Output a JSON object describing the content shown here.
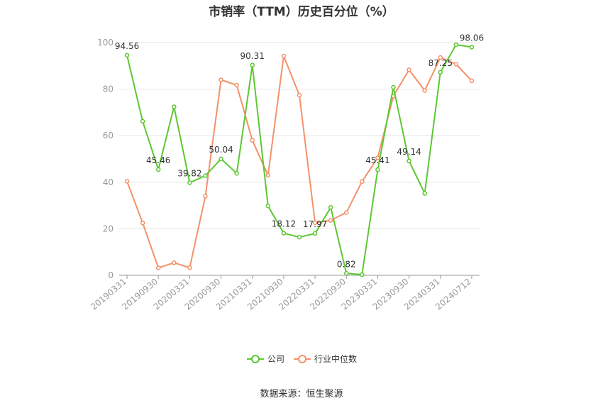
{
  "chart_data": {
    "type": "line",
    "title": "市销率（TTM）历史百分位（%）",
    "xlabel": "",
    "ylabel": "",
    "ylim": [
      0,
      100
    ],
    "yticks": [
      0,
      20,
      40,
      60,
      80,
      100
    ],
    "grid": true,
    "legend_position": "bottom-center",
    "x": [
      "20190331",
      "20190630",
      "20190930",
      "20191231",
      "20200331",
      "20200630",
      "20200930",
      "20201231",
      "20210331",
      "20210630",
      "20210930",
      "20211231",
      "20220331",
      "20220630",
      "20220930",
      "20221231",
      "20230331",
      "20230630",
      "20230930",
      "20231231",
      "20240331",
      "20240630",
      "20240712"
    ],
    "x_tick_labels": [
      "20190331",
      "20190930",
      "20200331",
      "20200930",
      "20210331",
      "20210930",
      "20220331",
      "20220930",
      "20230331",
      "20230930",
      "20240331",
      "20240712"
    ],
    "x_tick_indices": [
      0,
      2,
      4,
      6,
      8,
      10,
      12,
      14,
      16,
      18,
      20,
      22
    ],
    "series": [
      {
        "name": "公司",
        "color": "#5cc832",
        "values": [
          94.56,
          66.2,
          45.46,
          72.4,
          39.82,
          42.8,
          50.04,
          43.8,
          90.31,
          29.8,
          18.12,
          16.4,
          17.97,
          29.2,
          0.82,
          0.3,
          45.41,
          80.8,
          49.14,
          35.2,
          87.25,
          99.1,
          98.06
        ],
        "data_labels": {
          "0": "94.56",
          "2": "45.46",
          "4": "39.82",
          "6": "50.04",
          "8": "90.31",
          "10": "18.12",
          "12": "17.97",
          "14": "0.82",
          "16": "45.41",
          "18": "49.14",
          "20": "87.25",
          "22": "98.06"
        }
      },
      {
        "name": "行业中位数",
        "color": "#f4916a",
        "values": [
          40.4,
          22.5,
          3.2,
          5.4,
          3.3,
          34.0,
          84.0,
          81.7,
          58.0,
          43.0,
          94.2,
          77.4,
          22.6,
          23.6,
          27.0,
          40.3,
          50.5,
          77.0,
          88.3,
          79.4,
          93.6,
          90.7,
          83.6
        ]
      }
    ]
  },
  "source_text": "数据来源：恒生聚源"
}
